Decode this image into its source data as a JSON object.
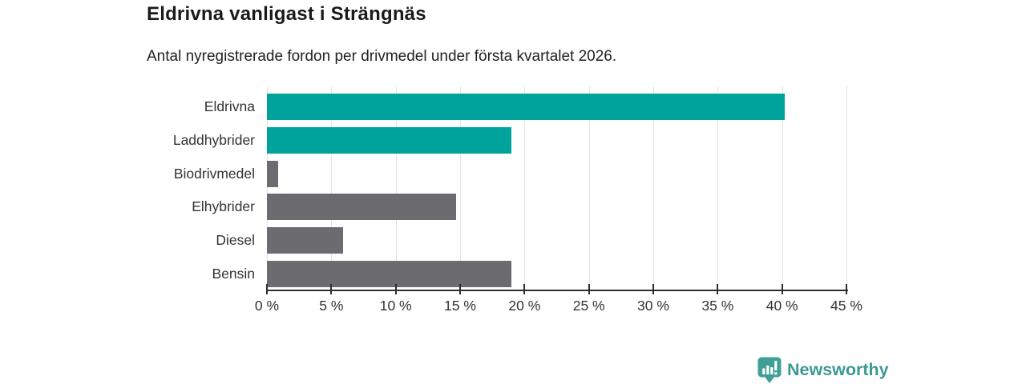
{
  "header": {
    "title": "Eldrivna vanligast i Strängnäs",
    "subtitle": "Antal nyregistrerade fordon per drivmedel under första kvartalet 2026."
  },
  "chart_data": {
    "type": "bar",
    "orientation": "horizontal",
    "title": "Eldrivna vanligast i Strängnäs",
    "subtitle": "Antal nyregistrerade fordon per drivmedel under första kvartalet 2026.",
    "categories": [
      "Eldrivna",
      "Laddhybrider",
      "Biodrivmedel",
      "Elhybrider",
      "Diesel",
      "Bensin"
    ],
    "values": [
      40.2,
      19.0,
      0.9,
      14.7,
      5.9,
      19.0
    ],
    "value_unit": "%",
    "bar_colors": [
      "#00a39b",
      "#00a39b",
      "#6c6c70",
      "#6c6c70",
      "#6c6c70",
      "#6c6c70"
    ],
    "x_ticks": [
      0,
      5,
      10,
      15,
      20,
      25,
      30,
      35,
      40,
      45
    ],
    "x_tick_suffix": " %",
    "xlim": [
      0,
      45
    ],
    "xlabel": "",
    "ylabel": "",
    "grid": true,
    "legend": false
  },
  "colors": {
    "accent_teal": "#00a39b",
    "bar_gray": "#6c6c70",
    "gridline": "#e3e3e3",
    "axis": "#2e2e2e",
    "text": "#333333",
    "brand_teal": "#3a9a92"
  },
  "footer": {
    "brand": "Newsworthy",
    "logo_icon": "newsworthy-bubble-barchart-icon"
  }
}
